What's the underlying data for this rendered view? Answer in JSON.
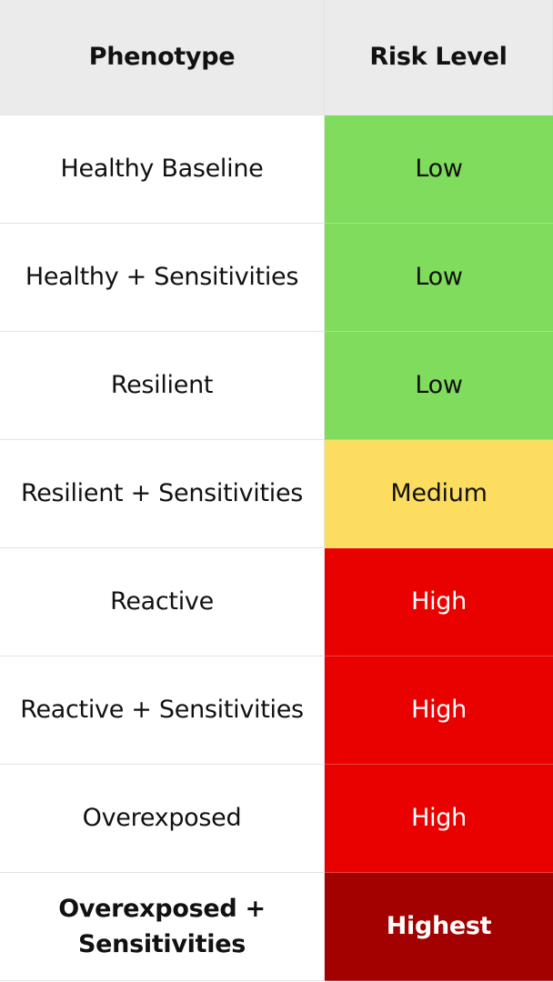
{
  "table": {
    "headers": [
      "Phenotype",
      "Risk Level"
    ],
    "rows": [
      [
        "Healthy Baseline",
        "Low"
      ],
      [
        "Healthy + Sensitivities",
        "Low"
      ],
      [
        "Resilient",
        "Low"
      ],
      [
        "Resilient + Sensitivities",
        "Medium"
      ],
      [
        "Reactive",
        "High"
      ],
      [
        "Reactive + Sensitivities",
        "High"
      ],
      [
        "Overexposed",
        "High"
      ],
      [
        "Overexposed + Sensitivities",
        "Highest"
      ]
    ]
  }
}
